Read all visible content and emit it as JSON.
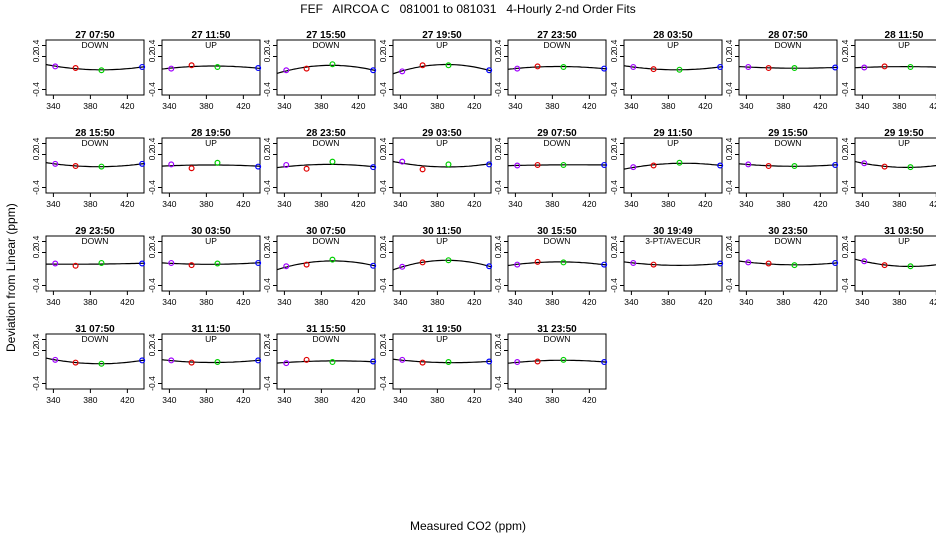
{
  "title": "FEF   AIRCOA C   081001 to 081031   4-Hourly 2-nd Order Fits",
  "xlabel": "Measured CO2 (ppm)",
  "ylabel": "Deviation from Linear (ppm)",
  "chart_data": {
    "type": "scatter",
    "x_ticks": [
      340,
      380,
      420
    ],
    "y_ticks": [
      -0.4,
      0.2,
      0.4
    ],
    "y_tick_labels": [
      "-0.4",
      "0.2",
      "0.4"
    ],
    "xlim": [
      332,
      438
    ],
    "ylim": [
      -0.5,
      0.5
    ],
    "point_colors": [
      "#a000ff",
      "#e00000",
      "#00d000",
      "#0000ff"
    ],
    "standard_x": [
      342,
      364,
      392,
      436
    ],
    "panels": [
      {
        "title": "27 07:50",
        "mode": "DOWN",
        "y": [
          0.02,
          -0.01,
          -0.05,
          0.01
        ]
      },
      {
        "title": "27 11:50",
        "mode": "UP",
        "y": [
          -0.02,
          0.04,
          0.01,
          -0.01
        ]
      },
      {
        "title": "27 15:50",
        "mode": "DOWN",
        "y": [
          -0.05,
          -0.02,
          0.06,
          -0.05
        ]
      },
      {
        "title": "27 19:50",
        "mode": "UP",
        "y": [
          -0.07,
          0.04,
          0.04,
          -0.05
        ]
      },
      {
        "title": "27 23:50",
        "mode": "DOWN",
        "y": [
          -0.02,
          0.02,
          0.01,
          -0.02
        ]
      },
      {
        "title": "28 03:50",
        "mode": "UP",
        "y": [
          0.01,
          -0.03,
          -0.04,
          0.01
        ]
      },
      {
        "title": "28 07:50",
        "mode": "DOWN",
        "y": [
          0.01,
          -0.01,
          -0.01,
          0.0
        ]
      },
      {
        "title": "28 11:50",
        "mode": "UP",
        "y": [
          0.0,
          0.02,
          0.01,
          0.0
        ]
      },
      {
        "title": "28 15:50",
        "mode": "DOWN",
        "y": [
          0.03,
          -0.01,
          -0.02,
          0.03
        ]
      },
      {
        "title": "28 19:50",
        "mode": "UP",
        "y": [
          0.02,
          -0.05,
          0.05,
          -0.02
        ]
      },
      {
        "title": "28 23:50",
        "mode": "DOWN",
        "y": [
          0.01,
          -0.06,
          0.07,
          -0.03
        ]
      },
      {
        "title": "29 03:50",
        "mode": "UP",
        "y": [
          0.07,
          -0.07,
          0.02,
          0.02
        ]
      },
      {
        "title": "29 07:50",
        "mode": "DOWN",
        "y": [
          0.0,
          0.01,
          0.01,
          0.01
        ]
      },
      {
        "title": "29 11:50",
        "mode": "UP",
        "y": [
          -0.03,
          0.0,
          0.05,
          0.0
        ]
      },
      {
        "title": "29 15:50",
        "mode": "DOWN",
        "y": [
          0.02,
          -0.01,
          -0.01,
          0.01
        ]
      },
      {
        "title": "29 19:50",
        "mode": "UP",
        "y": [
          0.04,
          -0.02,
          -0.03,
          0.04
        ]
      },
      {
        "title": "29 23:50",
        "mode": "DOWN",
        "y": [
          0.0,
          -0.04,
          0.01,
          0.0
        ]
      },
      {
        "title": "30 03:50",
        "mode": "UP",
        "y": [
          0.01,
          -0.03,
          0.0,
          0.01
        ]
      },
      {
        "title": "30 07:50",
        "mode": "DOWN",
        "y": [
          -0.05,
          -0.02,
          0.07,
          -0.04
        ]
      },
      {
        "title": "30 11:50",
        "mode": "UP",
        "y": [
          -0.06,
          0.02,
          0.06,
          -0.05
        ]
      },
      {
        "title": "30 15:50",
        "mode": "DOWN",
        "y": [
          -0.02,
          0.03,
          0.02,
          -0.02
        ]
      },
      {
        "title": "30 19:49",
        "mode": "3-PT/AVECUR",
        "y": [
          0.01,
          -0.02,
          null,
          0.0
        ]
      },
      {
        "title": "30 23:50",
        "mode": "DOWN",
        "y": [
          0.02,
          0.0,
          -0.03,
          0.01
        ]
      },
      {
        "title": "31 03:50",
        "mode": "UP",
        "y": [
          0.04,
          -0.03,
          -0.05,
          0.02
        ]
      },
      {
        "title": "31 07:50",
        "mode": "DOWN",
        "y": [
          0.03,
          -0.02,
          -0.04,
          0.02
        ]
      },
      {
        "title": "31 11:50",
        "mode": "UP",
        "y": [
          0.02,
          -0.02,
          -0.01,
          0.02
        ]
      },
      {
        "title": "31 15:50",
        "mode": "DOWN",
        "y": [
          -0.03,
          0.03,
          -0.01,
          0.0
        ]
      },
      {
        "title": "31 19:50",
        "mode": "UP",
        "y": [
          0.03,
          -0.02,
          -0.01,
          0.0
        ]
      },
      {
        "title": "31 23:50",
        "mode": "DOWN",
        "y": [
          -0.01,
          0.0,
          0.03,
          -0.01
        ]
      }
    ]
  }
}
